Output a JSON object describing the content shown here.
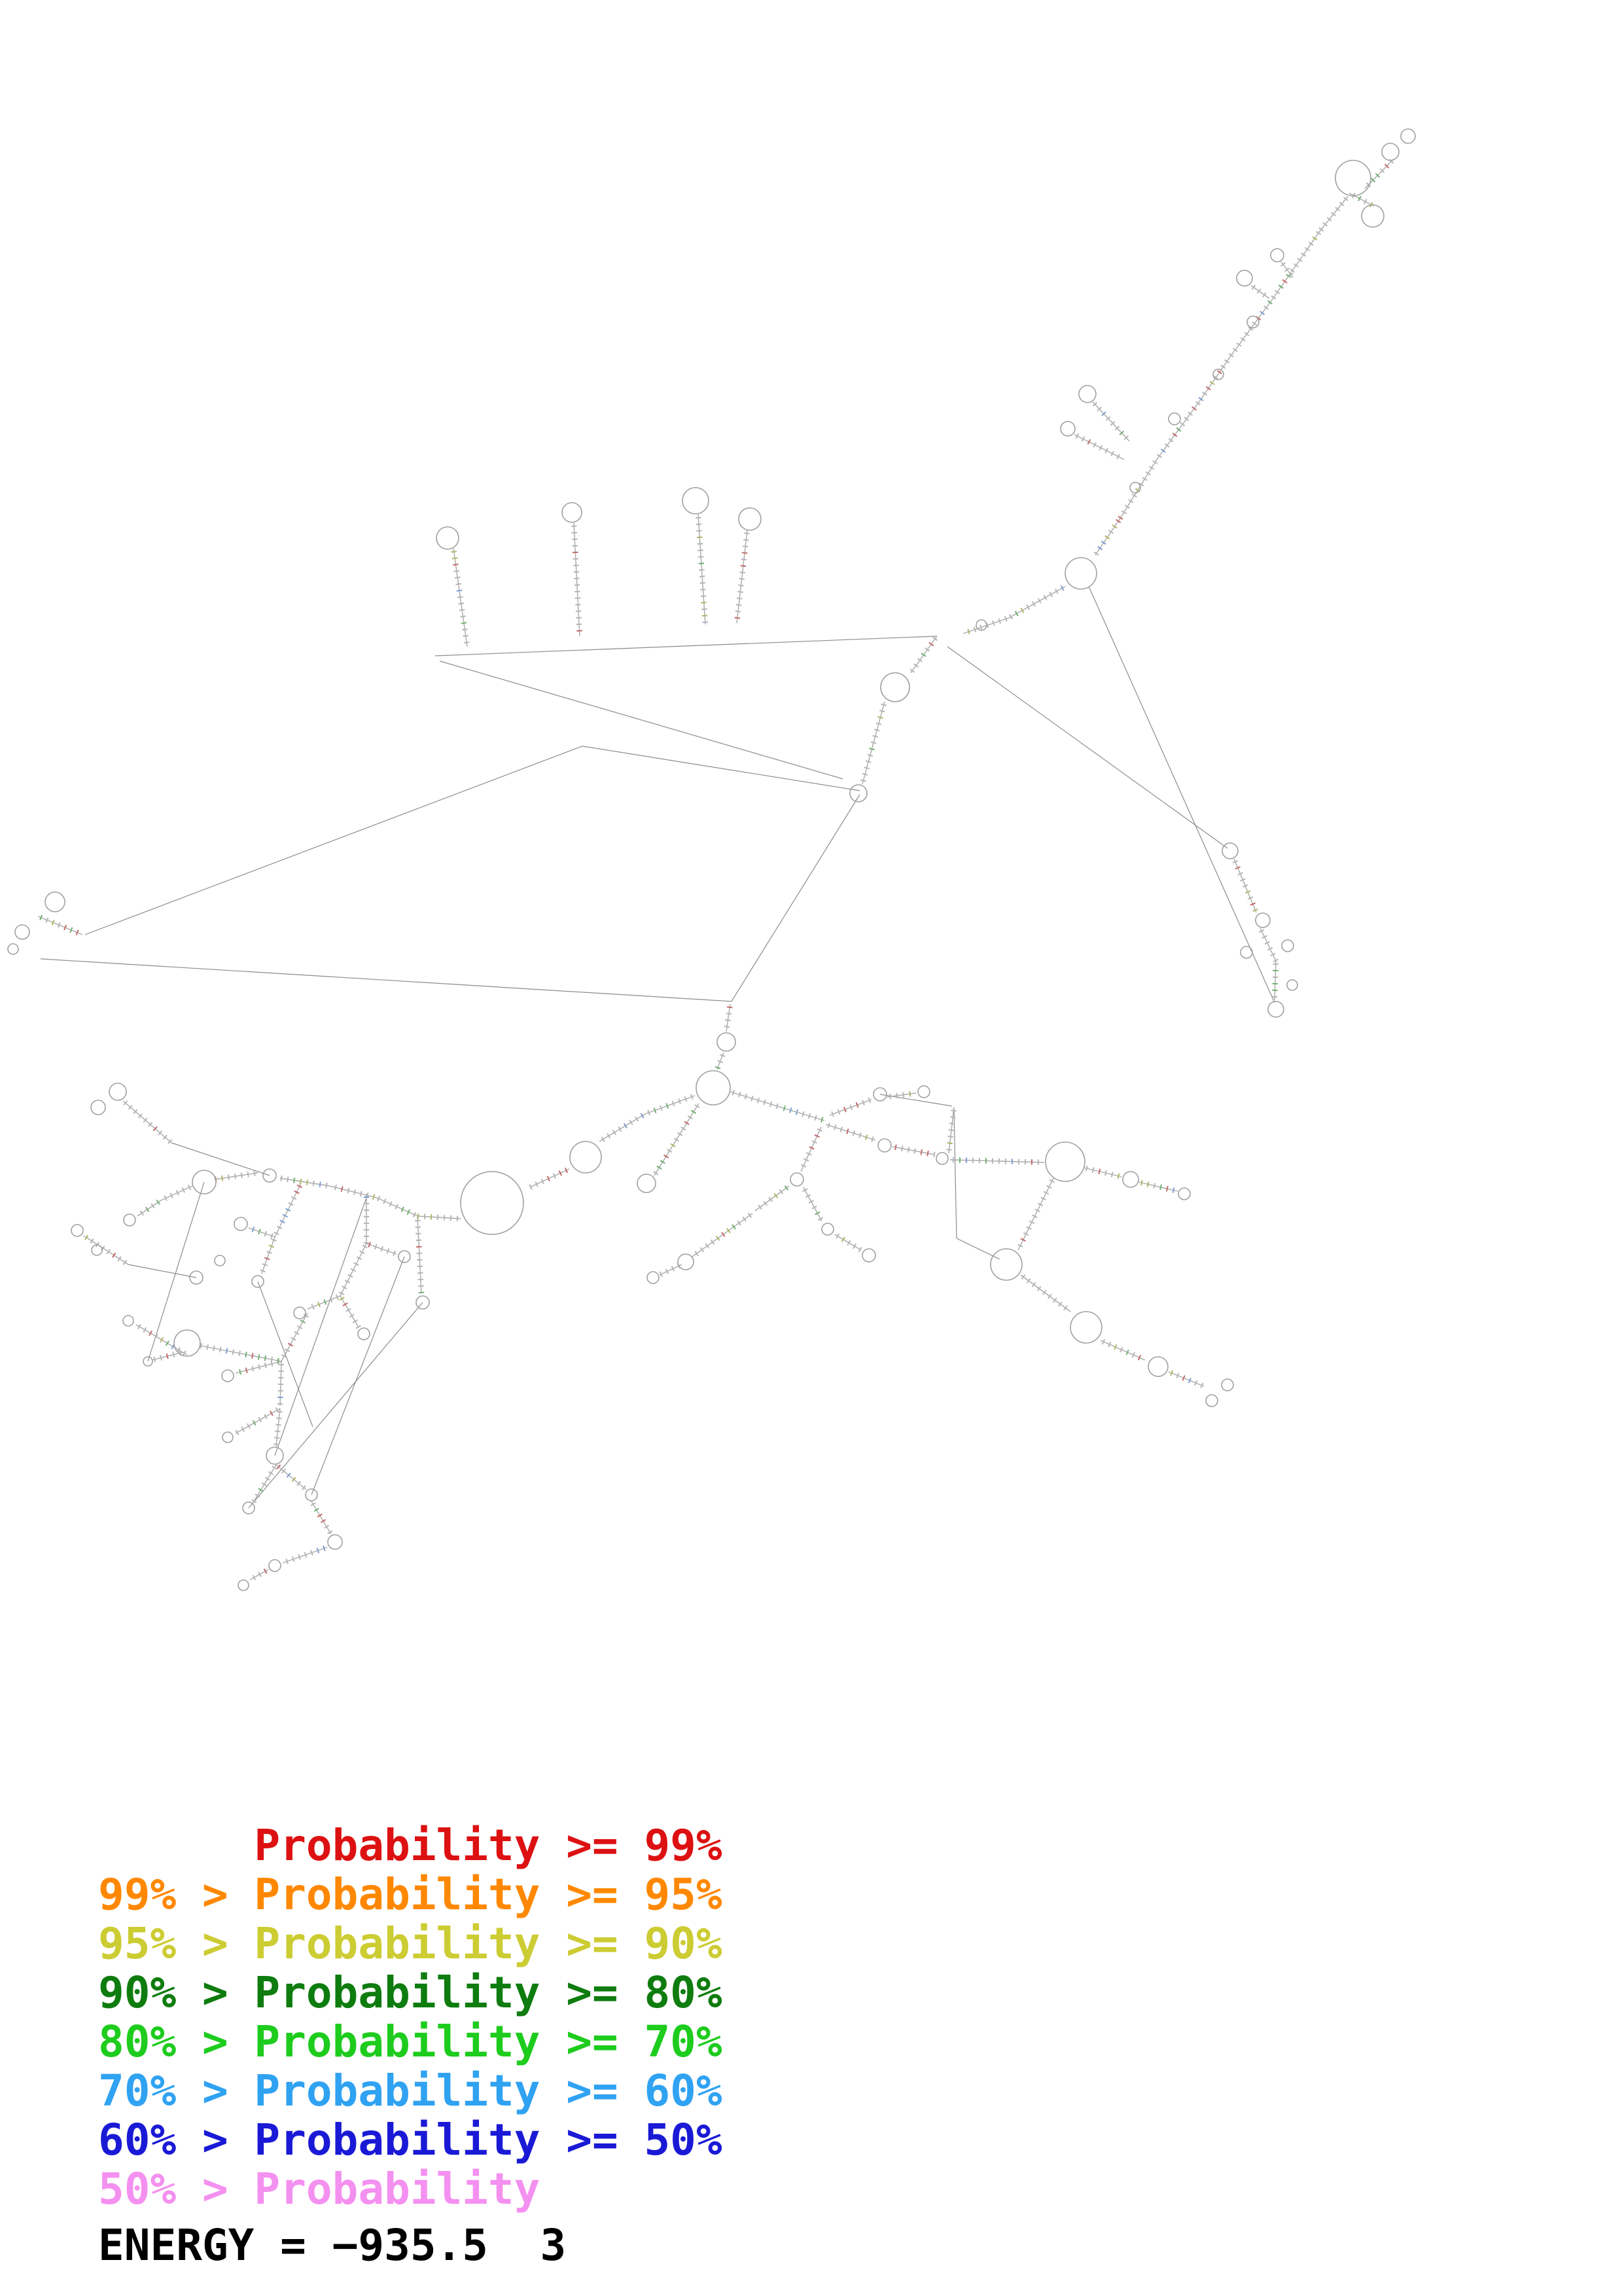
{
  "legend": {
    "entries": [
      {
        "text": "      Probability >= 99%",
        "color": "#dd1111"
      },
      {
        "text": "99% > Probability >= 95%",
        "color": "#ff8800"
      },
      {
        "text": "95% > Probability >= 90%",
        "color": "#cccc33"
      },
      {
        "text": "90% > Probability >= 80%",
        "color": "#0e7c0e"
      },
      {
        "text": "80% > Probability >= 70%",
        "color": "#1ecc1e"
      },
      {
        "text": "70% > Probability >= 60%",
        "color": "#30a2f2"
      },
      {
        "text": "60% > Probability >= 50%",
        "color": "#1a1ad6"
      },
      {
        "text": "50% > Probability",
        "color": "#f490f0"
      }
    ]
  },
  "energy": {
    "text": "ENERGY = −935.5  3"
  },
  "figure": {
    "backbone_color": "#a8a8a8",
    "link_color": "#8c8c8c",
    "loop_color": "#a0a0a0",
    "tick_colors": {
      "base": "#b6b6b6",
      "red": "#c46a6a",
      "green": "#72b072",
      "yellow": "#b4b468",
      "blue": "#7e9fd0"
    },
    "loops": [
      [
        2068,
        272,
        27
      ],
      [
        2125,
        232,
        13
      ],
      [
        2098,
        330,
        17
      ],
      [
        2152,
        208,
        11
      ],
      [
        1952,
        390,
        10
      ],
      [
        1902,
        425,
        12
      ],
      [
        1915,
        492,
        9
      ],
      [
        1862,
        572,
        8
      ],
      [
        1795,
        640,
        9
      ],
      [
        1735,
        745,
        8
      ],
      [
        1662,
        602,
        13
      ],
      [
        1632,
        655,
        11
      ],
      [
        1652,
        876,
        24
      ],
      [
        1500,
        955,
        8
      ],
      [
        684,
        822,
        17
      ],
      [
        874,
        783,
        15
      ],
      [
        1063,
        765,
        20
      ],
      [
        1146,
        793,
        17
      ],
      [
        1368,
        1050,
        22
      ],
      [
        1312,
        1212,
        13
      ],
      [
        84,
        1378,
        15
      ],
      [
        34,
        1424,
        11
      ],
      [
        20,
        1450,
        8
      ],
      [
        1880,
        1300,
        12
      ],
      [
        1930,
        1406,
        11
      ],
      [
        1905,
        1455,
        9
      ],
      [
        1968,
        1445,
        9
      ],
      [
        1950,
        1542,
        12
      ],
      [
        1975,
        1505,
        8
      ],
      [
        1110,
        1592,
        14
      ],
      [
        1090,
        1662,
        26
      ],
      [
        895,
        1768,
        24
      ],
      [
        752,
        1838,
        48
      ],
      [
        412,
        1796,
        10
      ],
      [
        312,
        1806,
        18
      ],
      [
        198,
        1864,
        9
      ],
      [
        180,
        1668,
        13
      ],
      [
        150,
        1692,
        11
      ],
      [
        988,
        1808,
        14
      ],
      [
        1345,
        1672,
        10
      ],
      [
        1412,
        1668,
        9
      ],
      [
        1352,
        1750,
        10
      ],
      [
        1440,
        1770,
        9
      ],
      [
        1628,
        1775,
        30
      ],
      [
        1728,
        1802,
        12
      ],
      [
        1810,
        1824,
        9
      ],
      [
        1538,
        1932,
        24
      ],
      [
        1660,
        2028,
        24
      ],
      [
        1770,
        2088,
        15
      ],
      [
        1852,
        2140,
        9
      ],
      [
        1876,
        2116,
        9
      ],
      [
        1218,
        1802,
        10
      ],
      [
        1265,
        1878,
        9
      ],
      [
        1328,
        1918,
        10
      ],
      [
        1048,
        1928,
        12
      ],
      [
        998,
        1952,
        9
      ],
      [
        368,
        1870,
        10
      ],
      [
        394,
        1958,
        9
      ],
      [
        618,
        1920,
        9
      ],
      [
        458,
        2006,
        9
      ],
      [
        556,
        2038,
        9
      ],
      [
        646,
        1990,
        10
      ],
      [
        348,
        2102,
        9
      ],
      [
        286,
        2052,
        20
      ],
      [
        420,
        2224,
        13
      ],
      [
        348,
        2196,
        8
      ],
      [
        476,
        2284,
        9
      ],
      [
        512,
        2356,
        11
      ],
      [
        380,
        2304,
        9
      ],
      [
        420,
        2392,
        9
      ],
      [
        372,
        2422,
        8
      ],
      [
        196,
        2018,
        8
      ],
      [
        226,
        2080,
        7
      ],
      [
        118,
        1880,
        9
      ],
      [
        148,
        1910,
        8
      ],
      [
        336,
        1926,
        8
      ],
      [
        300,
        1952,
        10
      ]
    ],
    "helices": [
      [
        [
          2060,
          300
        ],
        [
          2018,
          352
        ]
      ],
      [
        [
          2130,
          243
        ],
        [
          2086,
          288
        ]
      ],
      [
        [
          2100,
          315
        ],
        [
          2062,
          295
        ]
      ],
      [
        [
          2018,
          352
        ],
        [
          1944,
          458
        ]
      ],
      [
        [
          1958,
          400
        ],
        [
          1976,
          424
        ]
      ],
      [
        [
          1912,
          436
        ],
        [
          1940,
          456
        ]
      ],
      [
        [
          1944,
          458
        ],
        [
          1878,
          548
        ]
      ],
      [
        [
          1878,
          548
        ],
        [
          1834,
          612
        ]
      ],
      [
        [
          1834,
          612
        ],
        [
          1768,
          702
        ]
      ],
      [
        [
          1768,
          702
        ],
        [
          1712,
          792
        ]
      ],
      [
        [
          1712,
          792
        ],
        [
          1674,
          848
        ]
      ],
      [
        [
          1670,
          614
        ],
        [
          1726,
          674
        ]
      ],
      [
        [
          1642,
          664
        ],
        [
          1718,
          702
        ]
      ],
      [
        [
          1628,
          896
        ],
        [
          1542,
          944
        ]
      ],
      [
        [
          1542,
          944
        ],
        [
          1472,
          968
        ]
      ],
      [
        [
          1432,
          972
        ],
        [
          1392,
          1028
        ]
      ],
      [
        [
          1352,
          1072
        ],
        [
          1318,
          1198
        ]
      ],
      [
        [
          693,
          838
        ],
        [
          714,
          988
        ]
      ],
      [
        [
          877,
          799
        ],
        [
          886,
          972
        ]
      ],
      [
        [
          1067,
          786
        ],
        [
          1078,
          954
        ]
      ],
      [
        [
          1142,
          810
        ],
        [
          1126,
          952
        ]
      ],
      [
        [
          58,
          1400
        ],
        [
          126,
          1428
        ]
      ],
      [
        [
          1886,
          1312
        ],
        [
          1920,
          1394
        ]
      ],
      [
        [
          1926,
          1418
        ],
        [
          1950,
          1468
        ]
      ],
      [
        [
          1950,
          1468
        ],
        [
          1948,
          1528
        ]
      ],
      [
        [
          1116,
          1534
        ],
        [
          1110,
          1576
        ]
      ],
      [
        [
          1106,
          1608
        ],
        [
          1096,
          1634
        ]
      ],
      [
        [
          1062,
          1674
        ],
        [
          986,
          1702
        ]
      ],
      [
        [
          986,
          1702
        ],
        [
          916,
          1744
        ]
      ],
      [
        [
          870,
          1786
        ],
        [
          810,
          1814
        ]
      ],
      [
        [
          704,
          1862
        ],
        [
          638,
          1858
        ]
      ],
      [
        [
          638,
          1858
        ],
        [
          576,
          1830
        ]
      ],
      [
        [
          576,
          1830
        ],
        [
          504,
          1812
        ]
      ],
      [
        [
          504,
          1812
        ],
        [
          428,
          1800
        ]
      ],
      [
        [
          394,
          1792
        ],
        [
          328,
          1802
        ]
      ],
      [
        [
          294,
          1812
        ],
        [
          246,
          1834
        ]
      ],
      [
        [
          246,
          1834
        ],
        [
          210,
          1858
        ]
      ],
      [
        [
          188,
          1682
        ],
        [
          262,
          1746
        ]
      ],
      [
        [
          1068,
          1686
        ],
        [
          1000,
          1796
        ]
      ],
      [
        [
          1116,
          1668
        ],
        [
          1194,
          1692
        ]
      ],
      [
        [
          1194,
          1692
        ],
        [
          1260,
          1712
        ]
      ],
      [
        [
          1268,
          1704
        ],
        [
          1332,
          1680
        ]
      ],
      [
        [
          1356,
          1676
        ],
        [
          1400,
          1670
        ]
      ],
      [
        [
          1262,
          1718
        ],
        [
          1338,
          1742
        ]
      ],
      [
        [
          1364,
          1752
        ],
        [
          1428,
          1764
        ]
      ],
      [
        [
          1452,
          1772
        ],
        [
          1596,
          1776
        ]
      ],
      [
        [
          1656,
          1784
        ],
        [
          1714,
          1798
        ]
      ],
      [
        [
          1740,
          1806
        ],
        [
          1800,
          1820
        ]
      ],
      [
        [
          1610,
          1800
        ],
        [
          1556,
          1910
        ]
      ],
      [
        [
          1560,
          1948
        ],
        [
          1636,
          2004
        ]
      ],
      [
        [
          1682,
          2048
        ],
        [
          1750,
          2078
        ]
      ],
      [
        [
          1786,
          2096
        ],
        [
          1840,
          2118
        ]
      ],
      [
        [
          1255,
          1722
        ],
        [
          1224,
          1790
        ]
      ],
      [
        [
          1228,
          1814
        ],
        [
          1256,
          1866
        ]
      ],
      [
        [
          1276,
          1886
        ],
        [
          1316,
          1910
        ]
      ],
      [
        [
          1206,
          1812
        ],
        [
          1154,
          1850
        ]
      ],
      [
        [
          1150,
          1854
        ],
        [
          1058,
          1920
        ]
      ],
      [
        [
          1042,
          1932
        ],
        [
          1008,
          1948
        ]
      ],
      [
        [
          1458,
          1692
        ],
        [
          1450,
          1762
        ]
      ],
      [
        [
          460,
          1808
        ],
        [
          420,
          1890
        ]
      ],
      [
        [
          420,
          1890
        ],
        [
          380,
          1876
        ]
      ],
      [
        [
          420,
          1890
        ],
        [
          400,
          1946
        ]
      ],
      [
        [
          560,
          1824
        ],
        [
          560,
          1900
        ]
      ],
      [
        [
          560,
          1900
        ],
        [
          606,
          1916
        ]
      ],
      [
        [
          560,
          1900
        ],
        [
          520,
          1980
        ]
      ],
      [
        [
          520,
          1980
        ],
        [
          470,
          2000
        ]
      ],
      [
        [
          520,
          1980
        ],
        [
          548,
          2028
        ]
      ],
      [
        [
          638,
          1860
        ],
        [
          644,
          1976
        ]
      ],
      [
        [
          470,
          2006
        ],
        [
          430,
          2080
        ]
      ],
      [
        [
          430,
          2080
        ],
        [
          360,
          2098
        ]
      ],
      [
        [
          430,
          2080
        ],
        [
          306,
          2056
        ]
      ],
      [
        [
          430,
          2080
        ],
        [
          428,
          2148
        ]
      ],
      [
        [
          428,
          2152
        ],
        [
          422,
          2210
        ]
      ],
      [
        [
          428,
          2152
        ],
        [
          360,
          2190
        ]
      ],
      [
        [
          422,
          2238
        ],
        [
          468,
          2276
        ]
      ],
      [
        [
          476,
          2294
        ],
        [
          506,
          2344
        ]
      ],
      [
        [
          422,
          2238
        ],
        [
          388,
          2294
        ]
      ],
      [
        [
          500,
          2364
        ],
        [
          432,
          2388
        ]
      ],
      [
        [
          410,
          2398
        ],
        [
          382,
          2414
        ]
      ],
      [
        [
          286,
          2070
        ],
        [
          208,
          2024
        ]
      ],
      [
        [
          280,
          2066
        ],
        [
          232,
          2078
        ]
      ],
      [
        [
          128,
          1888
        ],
        [
          196,
          1932
        ]
      ]
    ],
    "links": [
      [
        [
          665,
          1002
        ],
        [
          1432,
          972
        ]
      ],
      [
        [
          672,
          1010
        ],
        [
          1288,
          1190
        ]
      ],
      [
        [
          890,
          1140
        ],
        [
          130,
          1428
        ]
      ],
      [
        [
          890,
          1140
        ],
        [
          1314,
          1208
        ]
      ],
      [
        [
          62,
          1465
        ],
        [
          1118,
          1530
        ]
      ],
      [
        [
          1118,
          1530
        ],
        [
          1314,
          1214
        ]
      ],
      [
        [
          1448,
          988
        ],
        [
          1876,
          1296
        ]
      ],
      [
        [
          1664,
          896
        ],
        [
          1948,
          1532
        ]
      ],
      [
        [
          1458,
          1692
        ],
        [
          1462,
          1892
        ]
      ],
      [
        [
          1462,
          1892
        ],
        [
          1528,
          1924
        ]
      ],
      [
        [
          1345,
          1672
        ],
        [
          1455,
          1690
        ]
      ],
      [
        [
          618,
          1920
        ],
        [
          476,
          2284
        ]
      ],
      [
        [
          560,
          1830
        ],
        [
          420,
          2224
        ]
      ],
      [
        [
          646,
          1990
        ],
        [
          380,
          2304
        ]
      ],
      [
        [
          394,
          1958
        ],
        [
          478,
          2180
        ]
      ],
      [
        [
          312,
          1806
        ],
        [
          226,
          2080
        ]
      ],
      [
        [
          196,
          1932
        ],
        [
          300,
          1952
        ]
      ],
      [
        [
          262,
          1746
        ],
        [
          412,
          1796
        ]
      ]
    ]
  }
}
